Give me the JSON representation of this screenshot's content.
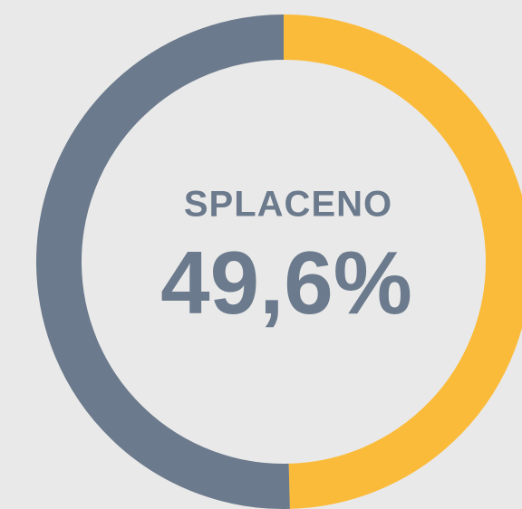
{
  "chart_data": {
    "type": "donut",
    "title": "SPLACENO",
    "values": [
      49.6,
      50.4
    ],
    "value_labels": [
      "49,6%",
      null
    ],
    "colors": [
      "#fbbb3a",
      "#6b7a8c"
    ]
  }
}
